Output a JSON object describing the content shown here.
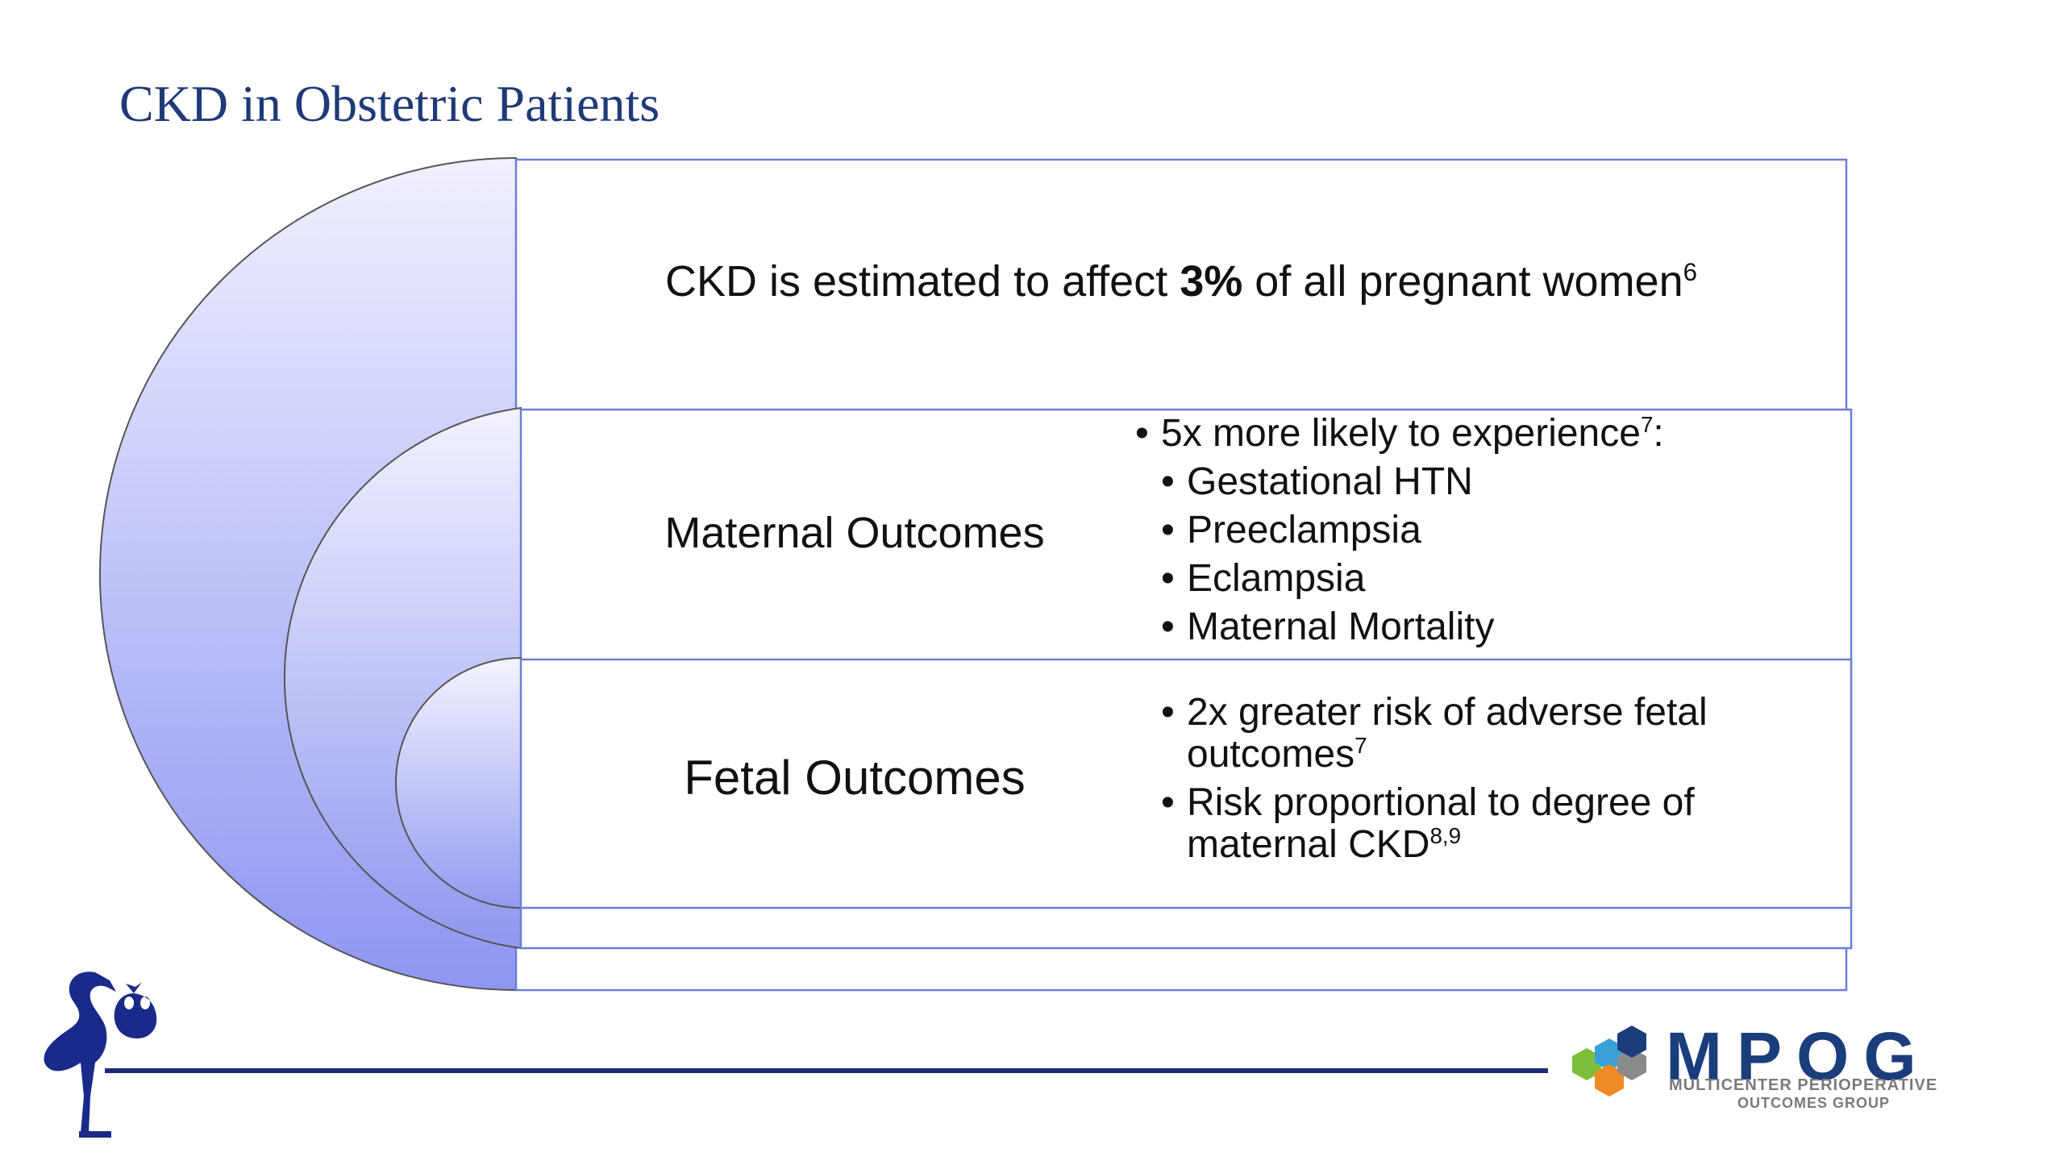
{
  "slide": {
    "title": "CKD in Obstetric Patients"
  },
  "top_box": {
    "text_before": "CKD is estimated to affect ",
    "text_bold": "3%",
    "text_after": " of all pregnant women",
    "superscript": "6"
  },
  "maternal": {
    "label": "Maternal Outcomes",
    "lead_text": "5x more likely to experience",
    "lead_sup": "7",
    "lead_suffix": ":",
    "items": [
      "Gestational HTN",
      "Preeclampsia",
      "Eclampsia",
      "Maternal Mortality"
    ]
  },
  "fetal": {
    "label": "Fetal Outcomes",
    "item1_line1": "2x greater risk of adverse fetal",
    "item1_line2": "outcomes",
    "item1_sup": "7",
    "item2_line1": "Risk proportional to degree of",
    "item2_line2": "maternal CKD",
    "item2_sup": "8,9"
  },
  "logo": {
    "name": "MPOG",
    "sub_line1": "MULTICENTER PERIOPERATIVE",
    "sub_line2": "OUTCOMES GROUP"
  },
  "colors": {
    "title": "#1f3a78",
    "box_border": "#6b7fd8",
    "arc_light": "#ebebff",
    "arc_dark": "#8f97f0",
    "footer_line": "#1a2a7a",
    "stork": "#1a2a8a"
  },
  "icons": [
    "stork-icon",
    "mpog-hex-icon"
  ]
}
